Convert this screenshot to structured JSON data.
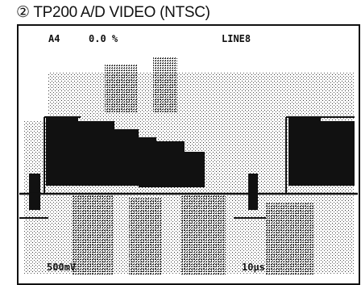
{
  "header": {
    "title": "② TP200 A/D VIDEO (NTSC)"
  },
  "screen": {
    "channel": "A4",
    "offset": "0.0 %",
    "line": "LINE8",
    "volts_div": "500mV",
    "time_div": "10μs"
  }
}
